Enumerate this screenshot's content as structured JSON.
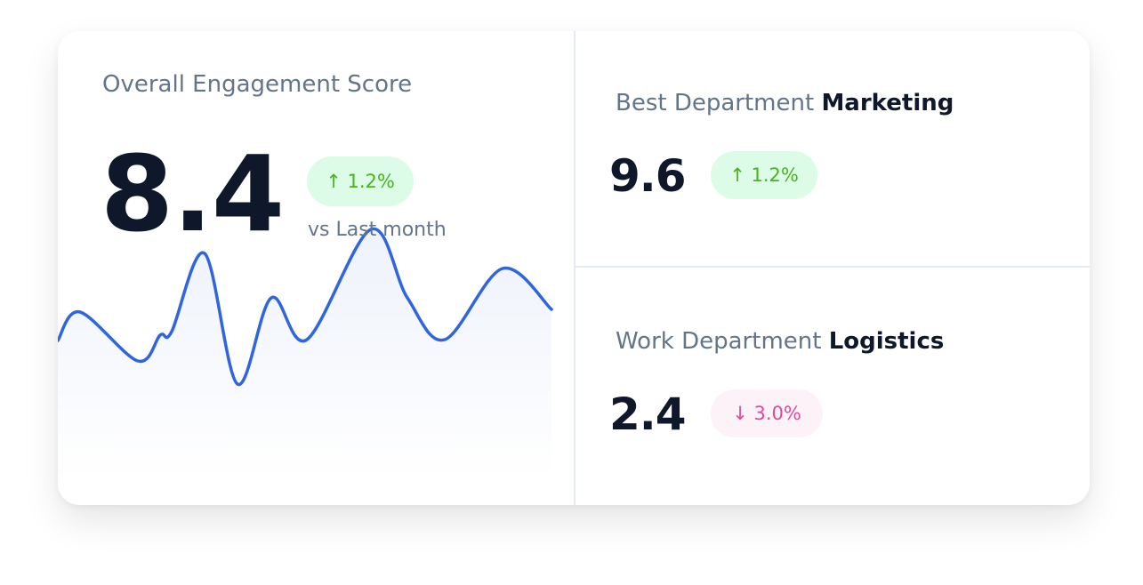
{
  "overall": {
    "title": "Overall Engagement Score",
    "score": 8.4,
    "change": "↑ 1.2%",
    "comparison": "vs Last month"
  },
  "best": {
    "label": "Best Department",
    "department": "Marketing",
    "score": 9.6,
    "change": "↑ 1.2%"
  },
  "worst": {
    "label": "Work Department",
    "department": "Logistics",
    "score": 2.4,
    "change": "↓ 3.0%"
  }
}
